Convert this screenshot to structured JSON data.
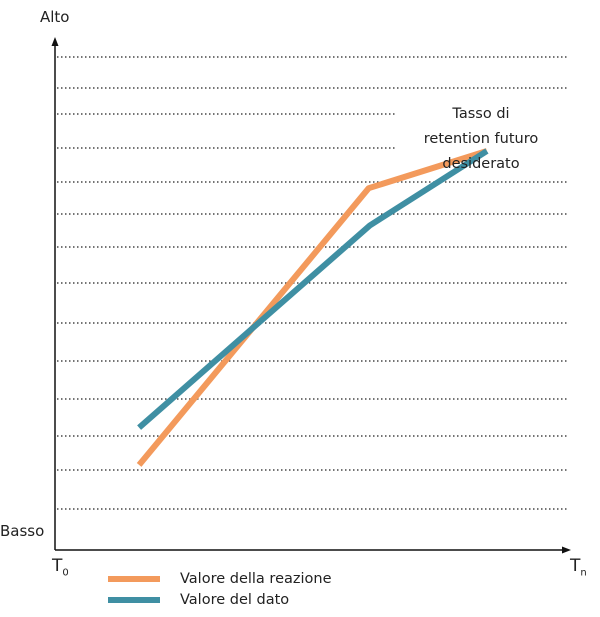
{
  "chart_data": {
    "type": "line",
    "y_axis": {
      "top_label": "Alto",
      "bottom_label": "Basso"
    },
    "x_axis": {
      "start_label": "T",
      "start_sub": "0",
      "end_label": "T",
      "end_sub": "n"
    },
    "ylim": [
      0,
      100
    ],
    "xlim": [
      0,
      100
    ],
    "grid": "dotted-horizontal",
    "series": [
      {
        "name": "Valore della reazione",
        "color": "#f39a5c",
        "points": [
          [
            16.3,
            16
          ],
          [
            60.8,
            68
          ],
          [
            83.7,
            75
          ]
        ]
      },
      {
        "name": "Valore del dato",
        "color": "#3f8fa3",
        "points": [
          [
            16.3,
            23
          ],
          [
            61.0,
            61
          ],
          [
            83.7,
            75
          ]
        ]
      }
    ],
    "annotation": {
      "lines": [
        "Tasso di",
        "retention futuro",
        "desiderato"
      ]
    },
    "legend_position": "bottom-left"
  }
}
